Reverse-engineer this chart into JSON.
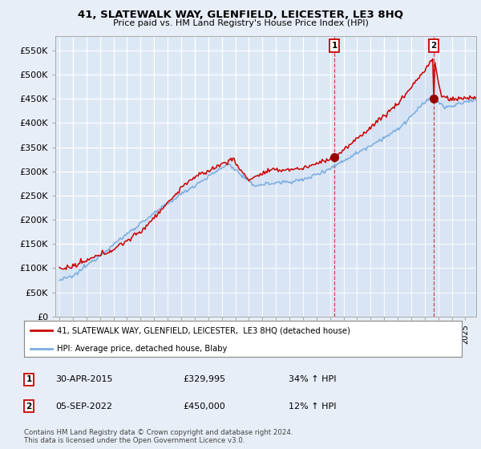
{
  "title": "41, SLATEWALK WAY, GLENFIELD, LEICESTER, LE3 8HQ",
  "subtitle": "Price paid vs. HM Land Registry's House Price Index (HPI)",
  "ylabel_ticks": [
    "£0",
    "£50K",
    "£100K",
    "£150K",
    "£200K",
    "£250K",
    "£300K",
    "£350K",
    "£400K",
    "£450K",
    "£500K",
    "£550K"
  ],
  "ytick_values": [
    0,
    50000,
    100000,
    150000,
    200000,
    250000,
    300000,
    350000,
    400000,
    450000,
    500000,
    550000
  ],
  "ylim": [
    0,
    580000
  ],
  "xlim_start": 1994.7,
  "xlim_end": 2025.8,
  "background_color": "#e8eef8",
  "plot_bg_color": "#dde8f5",
  "grid_color": "#ffffff",
  "red_line_color": "#cc0000",
  "blue_line_color": "#7aade0",
  "fill_color": "#c5d8f0",
  "transaction1_date": "30-APR-2015",
  "transaction1_price": "£329,995",
  "transaction1_hpi": "34% ↑ HPI",
  "transaction1_x": 2015.33,
  "transaction1_y": 329995,
  "transaction2_date": "05-SEP-2022",
  "transaction2_price": "£450,000",
  "transaction2_hpi": "12% ↑ HPI",
  "transaction2_x": 2022.67,
  "transaction2_y": 450000,
  "legend_line1": "41, SLATEWALK WAY, GLENFIELD, LEICESTER,  LE3 8HQ (detached house)",
  "legend_line2": "HPI: Average price, detached house, Blaby",
  "footer": "Contains HM Land Registry data © Crown copyright and database right 2024.\nThis data is licensed under the Open Government Licence v3.0."
}
